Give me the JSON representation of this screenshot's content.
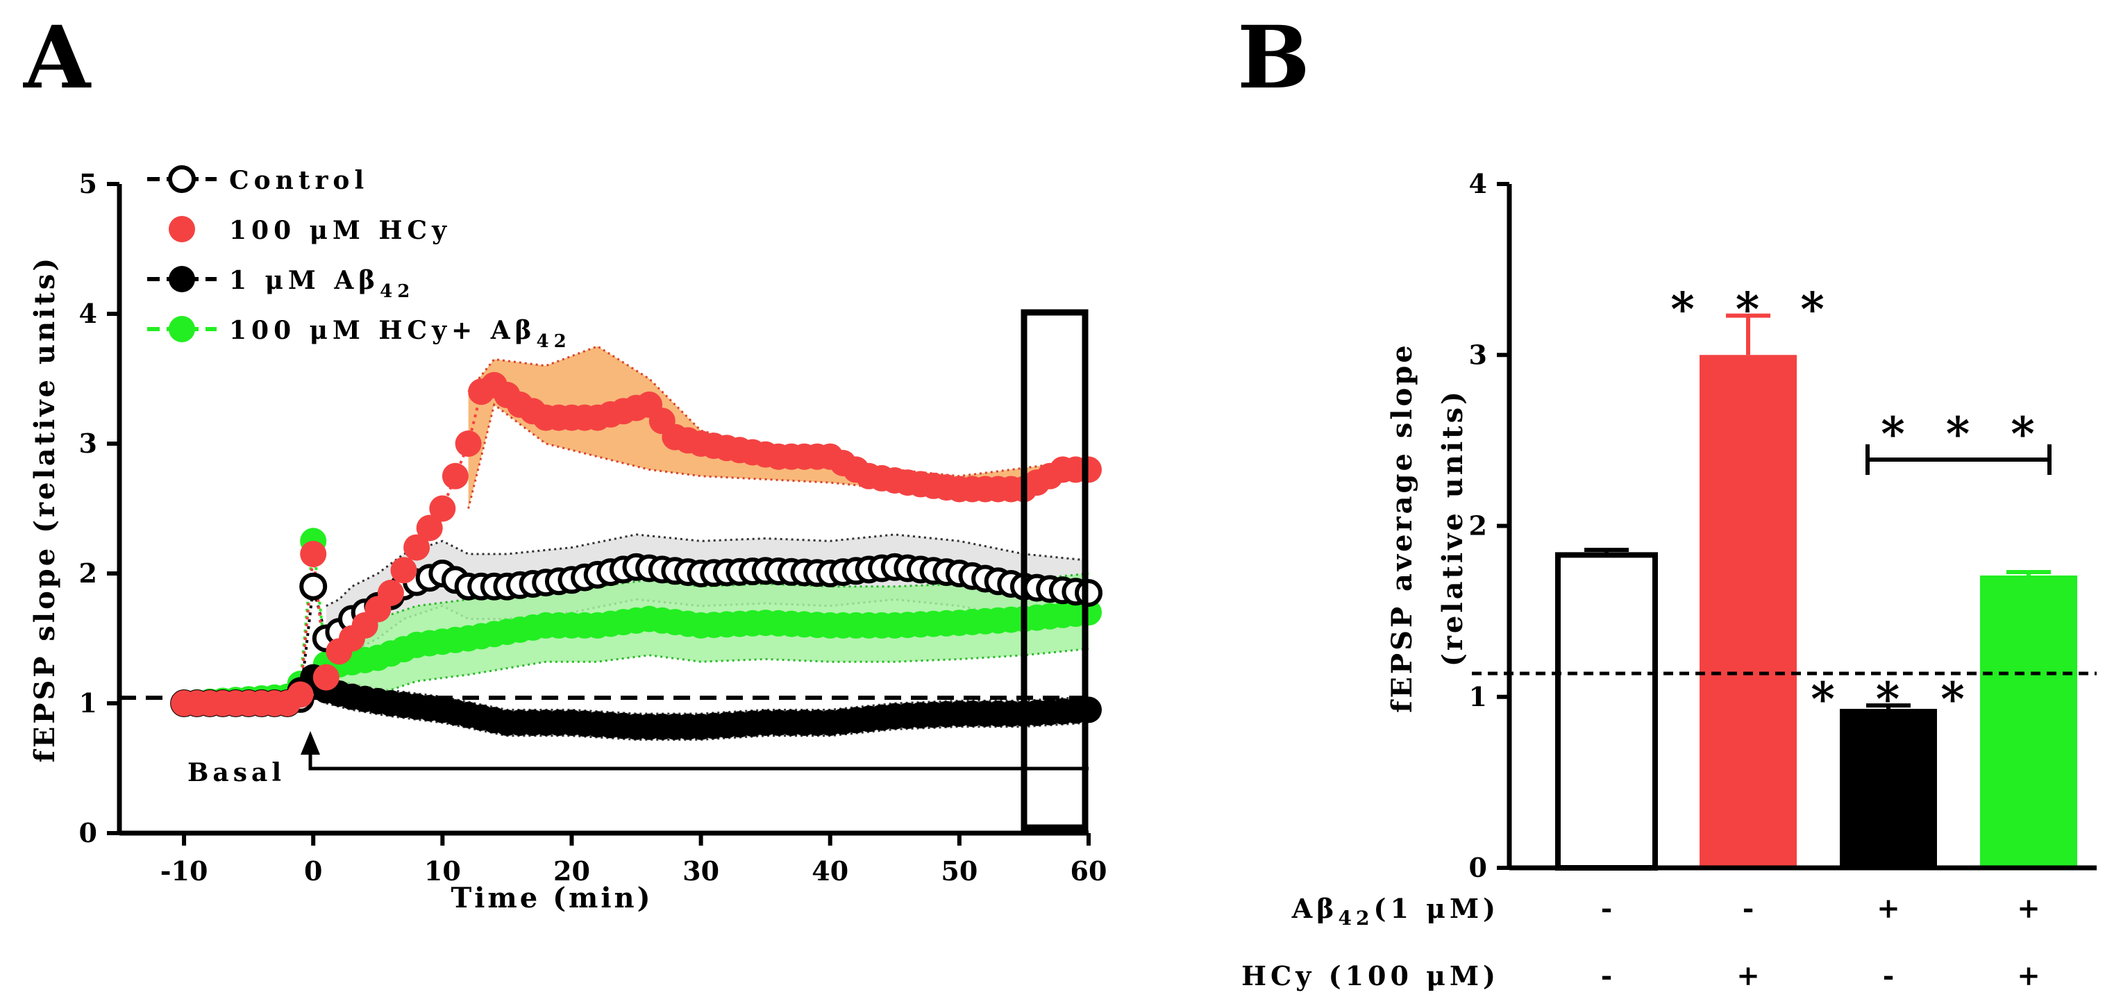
{
  "panels": {
    "a": "A",
    "b": "B"
  },
  "colors": {
    "control": "#ffffff",
    "hcy": "#f44242",
    "abeta": "#000000",
    "combo": "#22ee22",
    "hcy_band": "#f7b06a",
    "combo_band": "#a6f2a0"
  },
  "chart_data": [
    {
      "type": "line",
      "xlabel": "Time (min)",
      "ylabel": "fEPSP slope (relative units)",
      "xlim": [
        -15,
        60
      ],
      "ylim": [
        0,
        5
      ],
      "xticks": [
        "-10",
        "0",
        "10",
        "20",
        "30",
        "40",
        "50",
        "60"
      ],
      "yticks": [
        "0",
        "1",
        "2",
        "3",
        "4",
        "5"
      ],
      "baseline": 1,
      "annotation": "Basal",
      "stimulus_time": 0,
      "highlight_window": [
        55.5,
        60
      ],
      "legend_position": "top-left",
      "legend": [
        {
          "key": "control",
          "label": "Control"
        },
        {
          "key": "hcy",
          "label": "100 μM HCy"
        },
        {
          "key": "abeta",
          "label": "1 μM Aβ",
          "sub": "42"
        },
        {
          "key": "combo",
          "label": "100 μM HCy+ Aβ",
          "sub": "42"
        }
      ],
      "series": [
        {
          "key": "control",
          "name": "Control",
          "points": [
            [
              -10,
              1.0
            ],
            [
              -2,
              1.0
            ],
            [
              -0.5,
              1.05
            ],
            [
              0,
              1.9
            ],
            [
              1,
              1.5
            ],
            [
              2,
              1.55
            ],
            [
              3,
              1.65
            ],
            [
              5,
              1.75
            ],
            [
              7,
              1.9
            ],
            [
              10,
              2.0
            ],
            [
              12,
              1.9
            ],
            [
              15,
              1.9
            ],
            [
              20,
              1.95
            ],
            [
              25,
              2.05
            ],
            [
              30,
              2.0
            ],
            [
              35,
              2.02
            ],
            [
              40,
              2.0
            ],
            [
              45,
              2.05
            ],
            [
              50,
              2.0
            ],
            [
              55,
              1.9
            ],
            [
              60,
              1.85
            ]
          ],
          "band": [
            0.25,
            0.25
          ]
        },
        {
          "key": "hcy",
          "name": "100 μM HCy",
          "points": [
            [
              -10,
              1.0
            ],
            [
              -2,
              1.0
            ],
            [
              -0.5,
              1.1
            ],
            [
              0,
              2.15
            ],
            [
              1,
              1.2
            ],
            [
              2,
              1.4
            ],
            [
              4,
              1.6
            ],
            [
              6,
              1.85
            ],
            [
              8,
              2.2
            ],
            [
              10,
              2.5
            ],
            [
              12,
              3.0
            ],
            [
              13,
              3.4
            ],
            [
              14,
              3.45
            ],
            [
              16,
              3.3
            ],
            [
              18,
              3.2
            ],
            [
              20,
              3.2
            ],
            [
              22,
              3.2
            ],
            [
              24,
              3.25
            ],
            [
              26,
              3.3
            ],
            [
              28,
              3.05
            ],
            [
              30,
              3.0
            ],
            [
              33,
              2.95
            ],
            [
              36,
              2.9
            ],
            [
              40,
              2.9
            ],
            [
              43,
              2.75
            ],
            [
              46,
              2.7
            ],
            [
              50,
              2.65
            ],
            [
              55,
              2.65
            ],
            [
              58,
              2.8
            ],
            [
              60,
              2.8
            ]
          ],
          "band_upper": [
            [
              12,
              3.4
            ],
            [
              14,
              3.65
            ],
            [
              18,
              3.6
            ],
            [
              22,
              3.75
            ],
            [
              26,
              3.5
            ],
            [
              30,
              3.1
            ],
            [
              40,
              2.85
            ],
            [
              50,
              2.75
            ],
            [
              58,
              2.85
            ]
          ],
          "band_lower": [
            [
              12,
              2.5
            ],
            [
              14,
              3.3
            ],
            [
              18,
              3.0
            ],
            [
              22,
              2.9
            ],
            [
              26,
              2.8
            ],
            [
              30,
              2.75
            ],
            [
              40,
              2.7
            ],
            [
              50,
              2.6
            ],
            [
              58,
              2.7
            ]
          ]
        },
        {
          "key": "abeta",
          "name": "1 μM Aβ42",
          "points": [
            [
              -10,
              1.0
            ],
            [
              -2,
              1.0
            ],
            [
              0,
              1.2
            ],
            [
              1,
              1.1
            ],
            [
              3,
              1.05
            ],
            [
              6,
              1.0
            ],
            [
              10,
              0.95
            ],
            [
              15,
              0.85
            ],
            [
              20,
              0.85
            ],
            [
              25,
              0.82
            ],
            [
              30,
              0.82
            ],
            [
              35,
              0.85
            ],
            [
              40,
              0.85
            ],
            [
              45,
              0.9
            ],
            [
              50,
              0.92
            ],
            [
              55,
              0.92
            ],
            [
              60,
              0.95
            ]
          ],
          "band": [
            0.1,
            0.1
          ]
        },
        {
          "key": "combo",
          "name": "100 μM HCy+ Aβ42",
          "points": [
            [
              -10,
              1.0
            ],
            [
              -2,
              1.05
            ],
            [
              -0.5,
              1.2
            ],
            [
              0,
              2.25
            ],
            [
              1,
              1.3
            ],
            [
              2,
              1.3
            ],
            [
              5,
              1.35
            ],
            [
              8,
              1.45
            ],
            [
              12,
              1.5
            ],
            [
              15,
              1.55
            ],
            [
              18,
              1.6
            ],
            [
              22,
              1.6
            ],
            [
              26,
              1.65
            ],
            [
              30,
              1.6
            ],
            [
              35,
              1.62
            ],
            [
              40,
              1.6
            ],
            [
              45,
              1.6
            ],
            [
              50,
              1.62
            ],
            [
              55,
              1.65
            ],
            [
              60,
              1.7
            ]
          ],
          "band": [
            0.3,
            0.28
          ]
        }
      ]
    },
    {
      "type": "bar",
      "ylabel": "fEPSP average slope",
      "ylabel2": "(relative units)",
      "ylim": [
        0,
        4
      ],
      "yticks": [
        "0",
        "1",
        "2",
        "3",
        "4"
      ],
      "baseline": 1,
      "categories": [
        "Control",
        "100 μM HCy",
        "1 μM Aβ42",
        "100 μM HCy+ Aβ42"
      ],
      "values": [
        1.83,
        3.0,
        0.93,
        1.71
      ],
      "errors": [
        0.03,
        0.23,
        0.02,
        0.02
      ],
      "colors": [
        "#ffffff",
        "#f44242",
        "#000000",
        "#22ee22"
      ],
      "significance": [
        {
          "label": "* * *",
          "bar": 1
        },
        {
          "label": "* * *",
          "bar": 2
        },
        {
          "label": "* * *",
          "from": 2,
          "to": 3
        }
      ],
      "conditions": [
        {
          "label": "Aβ",
          "sub": "42",
          "label_tail": "(1 μM)",
          "signs": [
            "-",
            "-",
            "+",
            "+"
          ]
        },
        {
          "label": "HCy (100 μM)",
          "signs": [
            "-",
            "+",
            "-",
            "+"
          ]
        }
      ]
    }
  ]
}
